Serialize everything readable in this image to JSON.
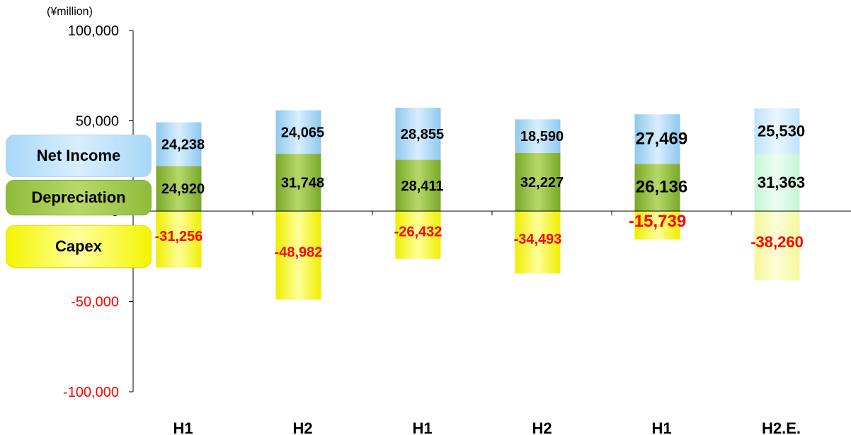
{
  "unit_label": "(¥million)",
  "legend": {
    "net_income": "Net Income",
    "depreciation": "Depreciation",
    "capex": "Capex"
  },
  "colors": {
    "net_income": "#a8d8f8",
    "depreciation": "#8fbc3a",
    "capex": "#f4f400",
    "negative_label": "#ff0000"
  },
  "chart_data": {
    "type": "bar",
    "stacked": true,
    "categories": [
      "H1",
      "H2",
      "H1",
      "H2",
      "H1",
      "H2.E."
    ],
    "series": [
      {
        "name": "Depreciation",
        "values": [
          24920,
          31748,
          28411,
          32227,
          26136,
          31363
        ],
        "labels": [
          "24,920",
          "31,748",
          "28,411",
          "32,227",
          "26,136",
          "31,363"
        ]
      },
      {
        "name": "Net Income",
        "values": [
          24238,
          24065,
          28855,
          18590,
          27469,
          25530
        ],
        "labels": [
          "24,238",
          "24,065",
          "28,855",
          "18,590",
          "27,469",
          "25,530"
        ]
      },
      {
        "name": "Capex",
        "values": [
          -31256,
          -48982,
          -26432,
          -34493,
          -15739,
          -38260
        ],
        "labels": [
          "-31,256",
          "-48,982",
          "-26,432",
          "-34,493",
          "-15,739",
          "-38,260"
        ]
      }
    ],
    "estimate_index": 5,
    "ylim": [
      -100000,
      100000
    ],
    "yticks": [
      {
        "value": 100000,
        "label": "100,000"
      },
      {
        "value": 50000,
        "label": "50,000"
      },
      {
        "value": 0,
        "label": "0"
      },
      {
        "value": -50000,
        "label": "-50,000"
      },
      {
        "value": -100000,
        "label": "-100,000"
      }
    ],
    "legend_position": "left"
  }
}
